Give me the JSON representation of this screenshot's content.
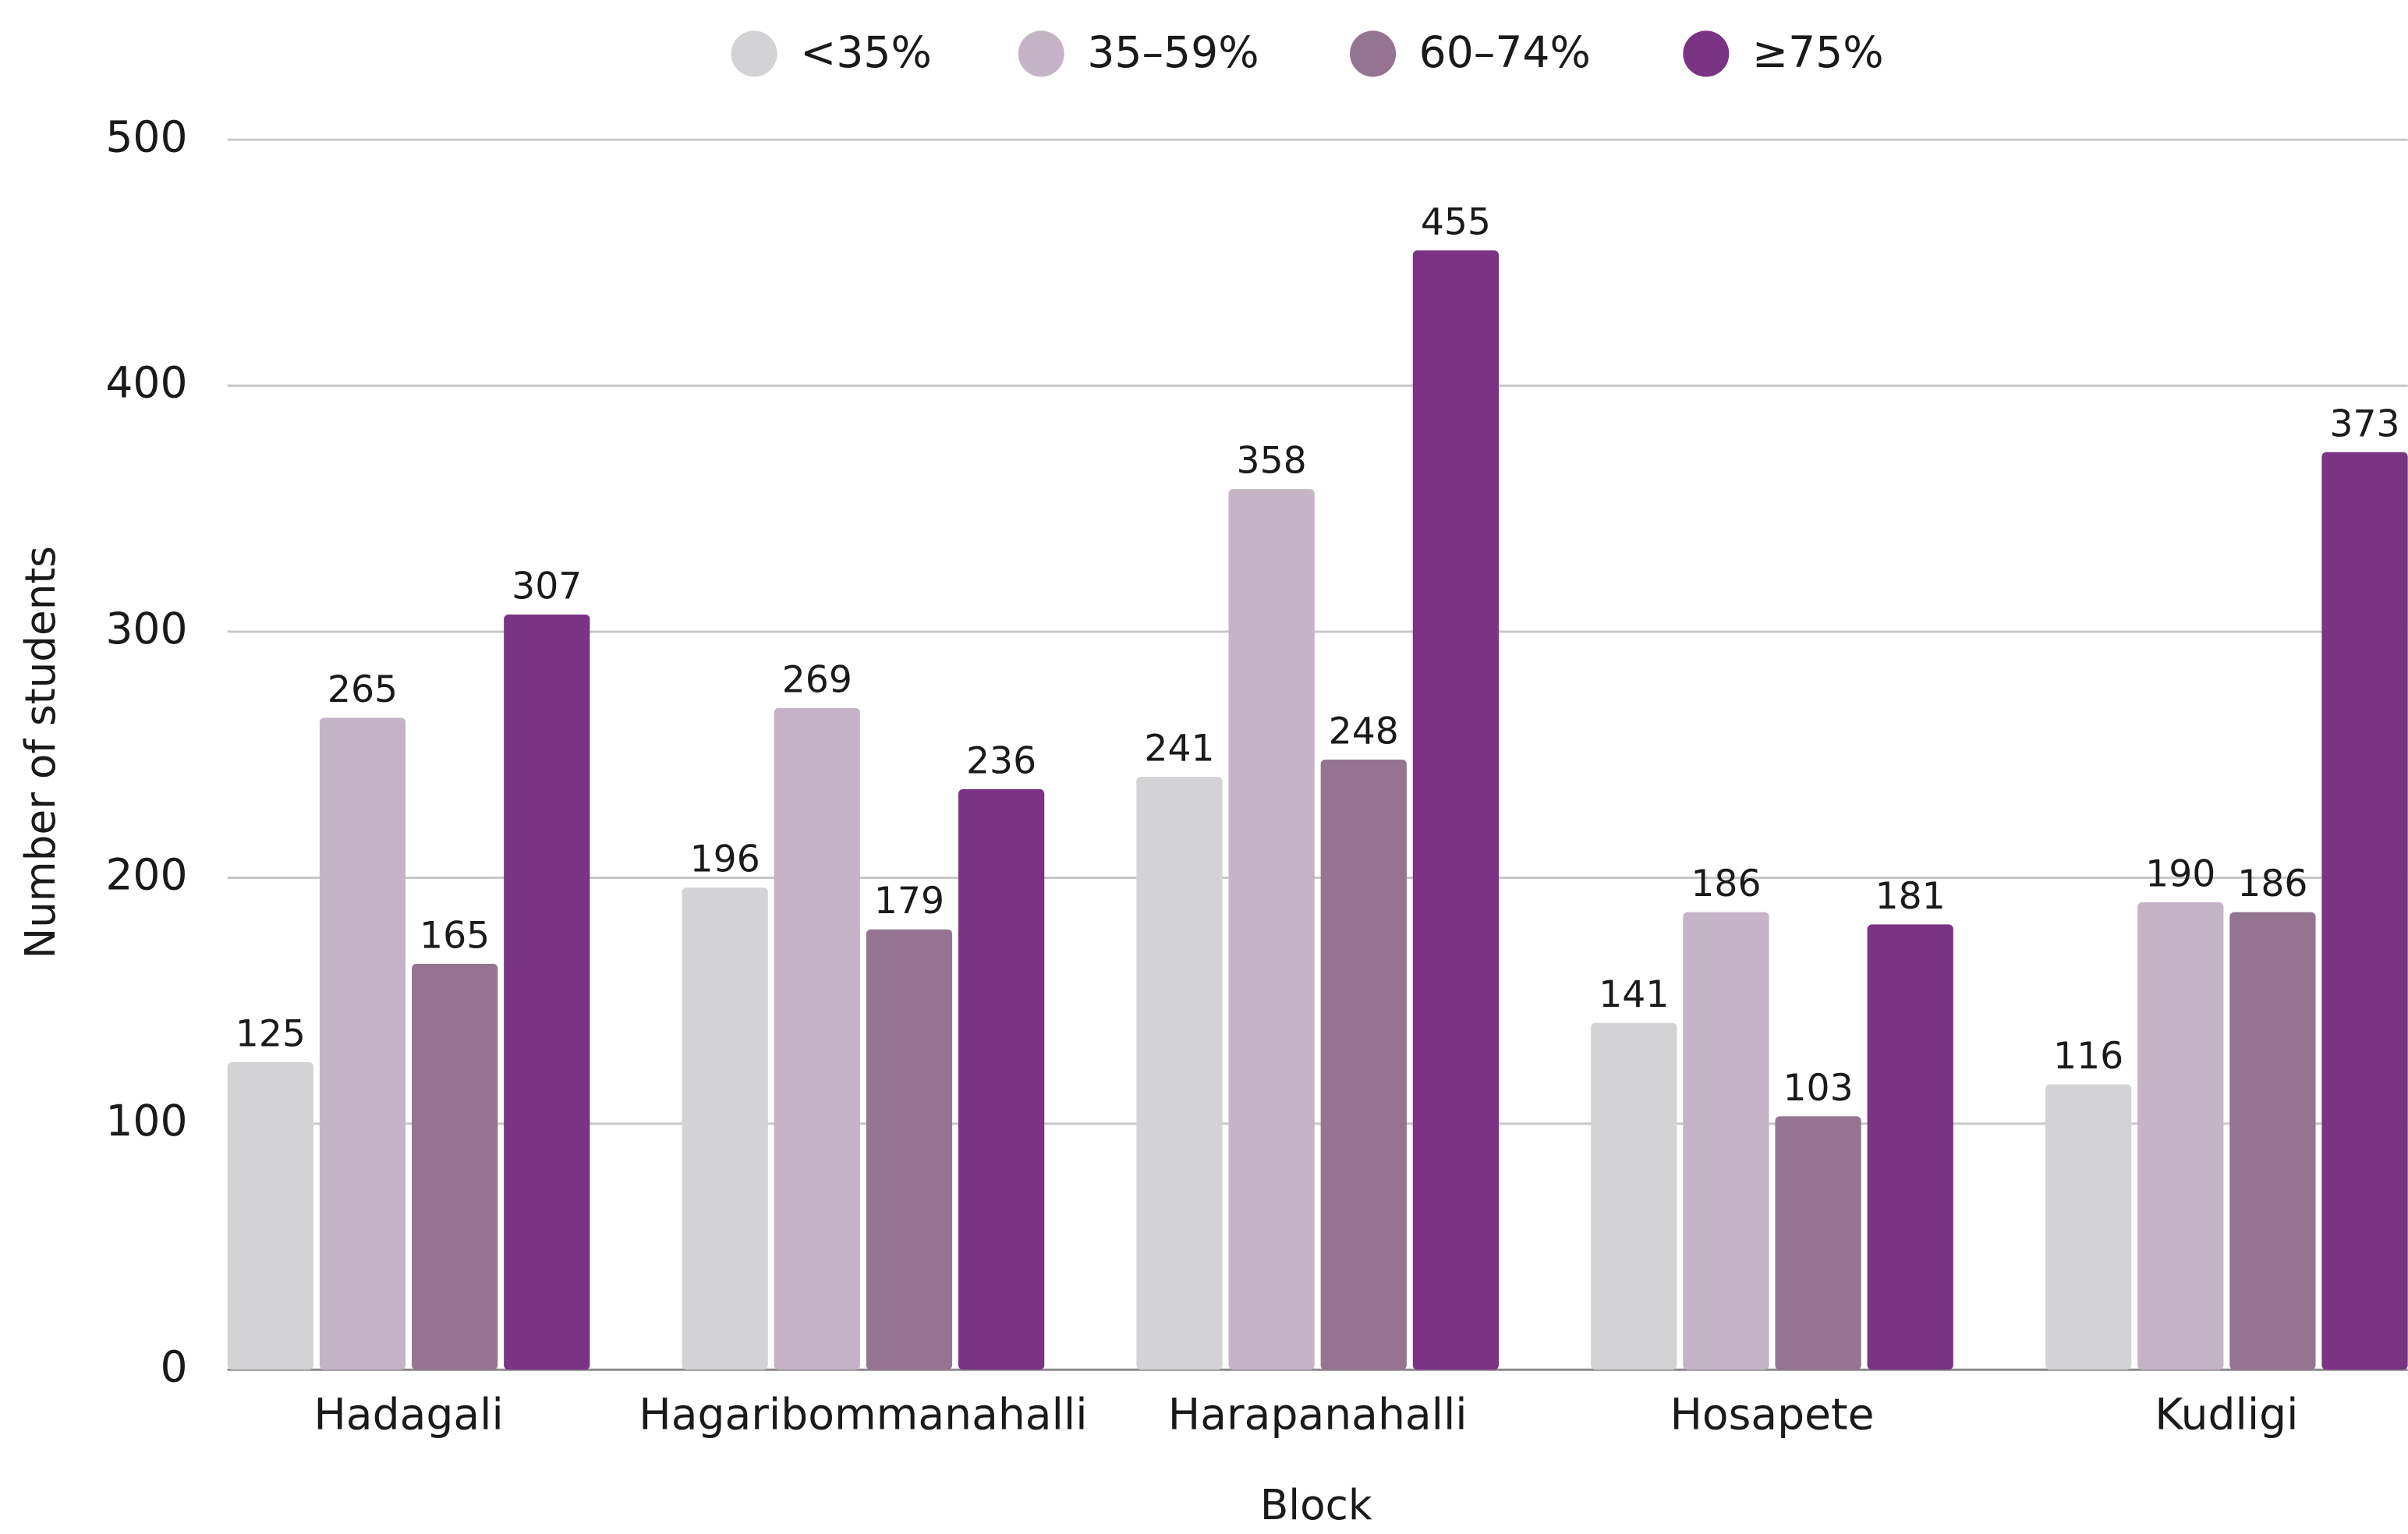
{
  "chart_data": {
    "type": "bar",
    "x_label": "Block",
    "y_label": "Number of students",
    "categories": [
      "Hadagali",
      "Hagaribommanahalli",
      "Harapanahalli",
      "Hosapete",
      "Kudligi"
    ],
    "series": [
      {
        "name": "<35%",
        "color": "#d3d3d5",
        "values": [
          125,
          196,
          241,
          141,
          116
        ]
      },
      {
        "name": "35–59%",
        "color": "#c5b4c6",
        "values": [
          265,
          269,
          358,
          186,
          190
        ]
      },
      {
        "name": "60–74%",
        "color": "#957491",
        "values": [
          165,
          179,
          248,
          103,
          186
        ]
      },
      {
        "name": "≥75%",
        "color": "#7b3384",
        "values": [
          307,
          236,
          455,
          181,
          373
        ]
      }
    ],
    "ylim": [
      0,
      500
    ],
    "yticks": [
      0,
      100,
      200,
      300,
      400,
      500
    ],
    "grid": true,
    "legend": "top"
  }
}
